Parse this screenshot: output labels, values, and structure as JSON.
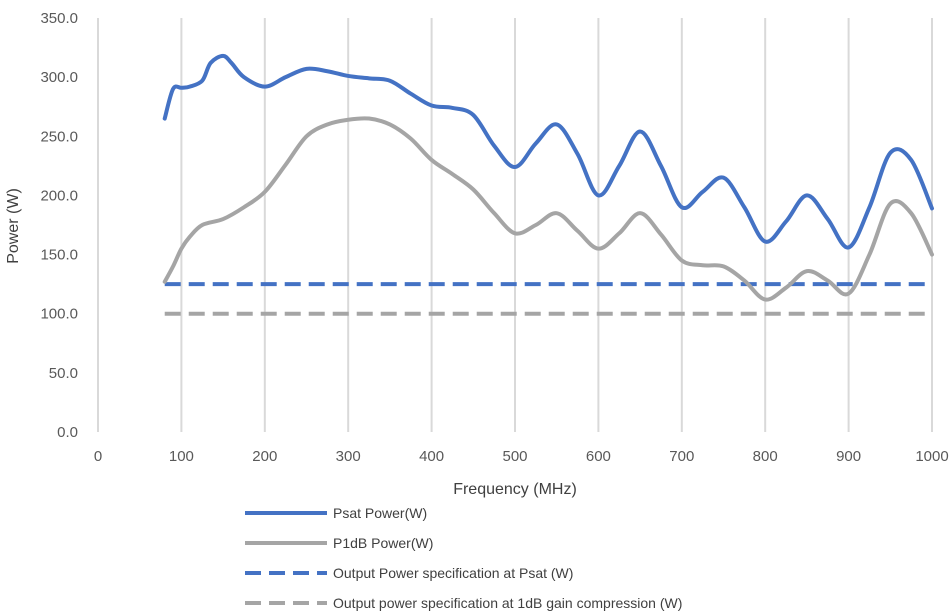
{
  "chart_data": {
    "type": "line",
    "title": "",
    "xlabel": "Frequency (MHz)",
    "ylabel": "Power (W)",
    "xlim": [
      0,
      1000
    ],
    "ylim": [
      0,
      350
    ],
    "x_ticks": [
      0,
      100,
      200,
      300,
      400,
      500,
      600,
      700,
      800,
      900,
      1000
    ],
    "y_ticks": [
      0,
      50,
      100,
      150,
      200,
      250,
      300,
      350
    ],
    "y_tick_labels": [
      "0.0",
      "50.0",
      "100.0",
      "150.0",
      "200.0",
      "250.0",
      "300.0",
      "350.0"
    ],
    "grid": "vertical",
    "legend_position": "bottom",
    "series": [
      {
        "name": "Psat Power(W)",
        "color": "#4472C4",
        "style": "solid",
        "x": [
          80,
          90,
          100,
          110,
          125,
          135,
          150,
          160,
          175,
          200,
          225,
          250,
          275,
          300,
          325,
          350,
          375,
          400,
          425,
          450,
          475,
          500,
          525,
          550,
          575,
          600,
          625,
          650,
          675,
          700,
          725,
          750,
          775,
          800,
          825,
          850,
          875,
          900,
          925,
          950,
          975,
          1000
        ],
        "values": [
          265,
          290,
          291,
          292,
          297,
          312,
          318,
          312,
          300,
          292,
          300,
          307,
          305,
          301,
          299,
          297,
          286,
          276,
          274,
          268,
          242,
          224,
          244,
          260,
          235,
          200,
          225,
          254,
          225,
          190,
          203,
          215,
          190,
          161,
          178,
          200,
          180,
          156,
          190,
          236,
          230,
          189
        ]
      },
      {
        "name": "P1dB Power(W)",
        "color": "#A5A5A5",
        "style": "solid",
        "x": [
          80,
          90,
          100,
          110,
          125,
          150,
          175,
          200,
          225,
          250,
          275,
          300,
          325,
          350,
          375,
          400,
          425,
          450,
          475,
          500,
          525,
          550,
          575,
          600,
          625,
          650,
          675,
          700,
          725,
          750,
          775,
          800,
          825,
          850,
          875,
          900,
          925,
          950,
          975,
          1000
        ],
        "values": [
          127,
          140,
          155,
          165,
          175,
          180,
          190,
          203,
          226,
          250,
          260,
          264,
          265,
          260,
          248,
          230,
          218,
          205,
          185,
          168,
          175,
          185,
          170,
          155,
          168,
          185,
          167,
          145,
          141,
          140,
          128,
          112,
          122,
          136,
          128,
          117,
          150,
          193,
          185,
          150
        ]
      },
      {
        "name": "Output Power specification at Psat (W)",
        "color": "#4472C4",
        "style": "dashed",
        "x": [
          80,
          1000
        ],
        "values": [
          125,
          125
        ]
      },
      {
        "name": "Output power specification at 1dB gain compression (W)",
        "color": "#A5A5A5",
        "style": "dashed",
        "x": [
          80,
          1000
        ],
        "values": [
          100,
          100
        ]
      }
    ]
  }
}
